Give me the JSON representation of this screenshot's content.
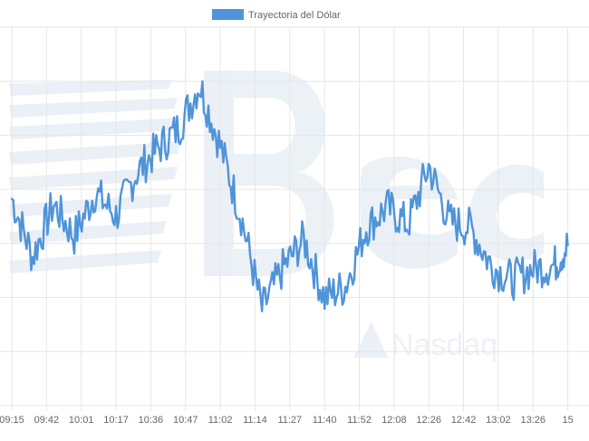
{
  "chart_data": {
    "type": "line",
    "title": "",
    "xlabel": "",
    "ylabel": "",
    "legend": {
      "position": "top-center"
    },
    "grid": true,
    "x_ticks": [
      "09:15",
      "09:42",
      "10:01",
      "10:17",
      "10:36",
      "10:47",
      "11:02",
      "11:14",
      "11:27",
      "11:40",
      "11:52",
      "12:08",
      "12:26",
      "12:42",
      "13:02",
      "13:26",
      "15"
    ],
    "series": [
      {
        "name": "Trayectoria del Dólar",
        "color": "#4f94d9",
        "x": [
          0,
          0.6,
          1.2,
          1.8,
          2.4,
          3.0,
          3.6,
          4.2,
          4.8,
          5.4,
          6.0,
          6.6,
          7.2,
          7.8,
          8.4,
          9.0,
          9.6,
          10.2,
          10.8,
          11.4,
          12.0,
          12.6,
          13.2,
          13.8,
          14.4,
          15.0,
          15.6,
          16.0
        ],
        "y": [
          56,
          36,
          54,
          43,
          58,
          50,
          65,
          73,
          80,
          95,
          74,
          50,
          18,
          32,
          42,
          22,
          26,
          46,
          53,
          47,
          67,
          48,
          46,
          33,
          28,
          32,
          33,
          40
        ],
        "min": 17,
        "max": 99
      }
    ],
    "watermark": "Nasdaq"
  }
}
